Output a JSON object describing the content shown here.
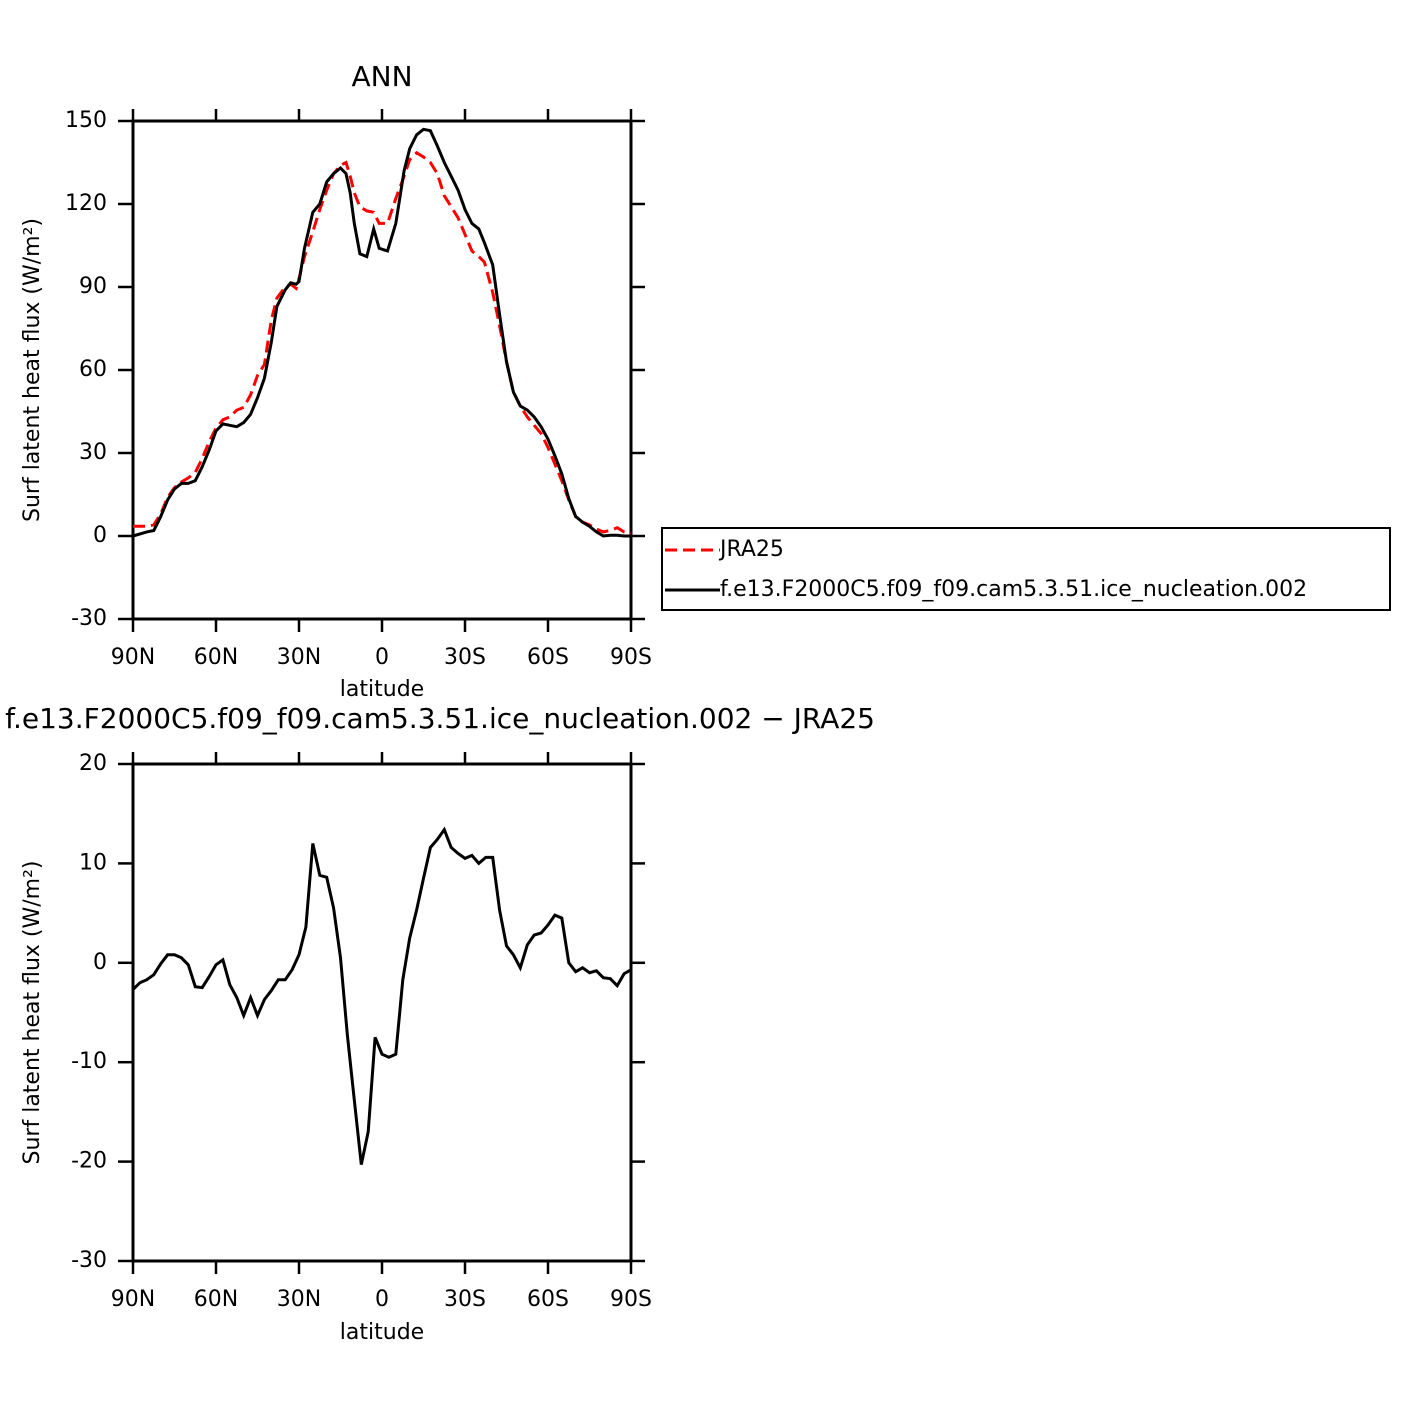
{
  "chart_data": [
    {
      "type": "line",
      "title": "ANN",
      "x_label": "latitude",
      "y_label": "Surf latent heat flux (W/m²)",
      "x": [
        90,
        85,
        82.5,
        80,
        77.5,
        75,
        72.5,
        70,
        67.5,
        65,
        62.5,
        60,
        57.5,
        55,
        52.5,
        50,
        47.5,
        45,
        42.5,
        40,
        38,
        35,
        33,
        31,
        30,
        28,
        25,
        22.5,
        20,
        17.5,
        15,
        13,
        11.5,
        10,
        8,
        5.5,
        3,
        1,
        -2,
        -5,
        -8,
        -10,
        -12.5,
        -15,
        -17.5,
        -20,
        -22.5,
        -25,
        -27.5,
        -30,
        -32.5,
        -35,
        -37,
        -40,
        -42.5,
        -45,
        -47.5,
        -50,
        -52.5,
        -55,
        -57.5,
        -60,
        -62.5,
        -65,
        -67.5,
        -70,
        -72.5,
        -75,
        -77.5,
        -80,
        -82.5,
        -85,
        -87.5,
        -90
      ],
      "xlim": [
        90,
        -90
      ],
      "xticks": [
        {
          "value": 90,
          "label": "90N"
        },
        {
          "value": 60,
          "label": "60N"
        },
        {
          "value": 30,
          "label": "30N"
        },
        0,
        {
          "value": -30,
          "label": "30S"
        },
        {
          "value": -60,
          "label": "60S"
        },
        {
          "value": -90,
          "label": "90S"
        }
      ],
      "ylim": [
        -30,
        150
      ],
      "yticks": [
        150,
        120,
        90,
        60,
        30,
        0,
        -30
      ],
      "legend": "right",
      "series": [
        {
          "name": "JRA25",
          "color": "#ff0000",
          "line_style": "dashed",
          "values": [
            3.5,
            3.5,
            4,
            8,
            14,
            17.5,
            19.5,
            21,
            23,
            28,
            34,
            39,
            42,
            43,
            45.5,
            46.5,
            51,
            58,
            62,
            78,
            86,
            90,
            91,
            89.5,
            93,
            101,
            110,
            118,
            125,
            131,
            134,
            135,
            130,
            124,
            119,
            117.5,
            117,
            113,
            113,
            122,
            130,
            136,
            138.5,
            137,
            135,
            131,
            123,
            119,
            115,
            109,
            103,
            101,
            99,
            88,
            76,
            63,
            52,
            47,
            43,
            40,
            37,
            32,
            26,
            20,
            13,
            7,
            5,
            4,
            2.5,
            1.5,
            2,
            3,
            1.5,
            1
          ]
        },
        {
          "name": "f.e13.F2000C5.f09_f09.cam5.3.51.ice_nucleation.002",
          "color": "#000000",
          "line_style": "solid",
          "values": [
            0,
            1.5,
            2,
            7,
            13,
            17,
            19,
            19,
            20,
            25,
            31,
            38,
            40.5,
            40,
            39.5,
            41,
            44,
            50,
            57,
            70,
            83,
            89,
            91.5,
            91,
            92,
            104,
            117,
            120,
            128,
            131,
            133,
            131,
            124,
            113,
            102,
            101,
            111,
            104,
            103,
            113,
            132,
            140,
            145,
            147,
            146.5,
            141,
            135,
            130,
            125,
            118,
            113,
            111,
            106,
            98,
            80,
            63,
            52,
            47,
            45.5,
            43,
            39.5,
            35,
            29,
            22.5,
            13.5,
            7,
            5,
            3.5,
            1.5,
            0,
            0.3,
            0.3,
            0,
            0
          ]
        }
      ]
    },
    {
      "type": "line",
      "title": "f.e13.F2000C5.f09_f09.cam5.3.51.ice_nucleation.002 − JRA25",
      "x_label": "latitude",
      "y_label": "Surf latent heat flux (W/m²)",
      "x": [
        90,
        87.5,
        85,
        82.5,
        80,
        77.5,
        75,
        72.5,
        70,
        67.5,
        65,
        62.5,
        60,
        57.5,
        55,
        52.5,
        50,
        47.5,
        45,
        42.5,
        40,
        37.5,
        35,
        32.5,
        30,
        27.5,
        25,
        22.5,
        20,
        17.5,
        15,
        12.5,
        10,
        7.5,
        5,
        2.5,
        0,
        -2.5,
        -5,
        -7.5,
        -10,
        -12.5,
        -15,
        -17.5,
        -20,
        -22.5,
        -25,
        -27.5,
        -30,
        -32.5,
        -35,
        -37.5,
        -40,
        -42.5,
        -45,
        -47.5,
        -50,
        -52.5,
        -55,
        -57.5,
        -60,
        -62.5,
        -65,
        -67.5,
        -70,
        -72.5,
        -75,
        -77.5,
        -80,
        -82.5,
        -85,
        -87.5,
        -90
      ],
      "xlim": [
        90,
        -90
      ],
      "xticks": [
        {
          "value": 90,
          "label": "90N"
        },
        {
          "value": 60,
          "label": "60N"
        },
        {
          "value": 30,
          "label": "30N"
        },
        0,
        {
          "value": -30,
          "label": "30S"
        },
        {
          "value": -60,
          "label": "60S"
        },
        {
          "value": -90,
          "label": "90S"
        }
      ],
      "ylim": [
        -30,
        20
      ],
      "yticks": [
        20,
        10,
        0,
        -10,
        -20,
        -30
      ],
      "series": [
        {
          "color": "#000000",
          "line_style": "solid",
          "values": [
            -2.7,
            -2,
            -1.7,
            -1.2,
            -0.1,
            0.8,
            0.8,
            0.5,
            -0.2,
            -2.4,
            -2.5,
            -1.4,
            -0.2,
            0.3,
            -2.2,
            -3.5,
            -5.3,
            -3.5,
            -5.3,
            -3.7,
            -2.8,
            -1.7,
            -1.7,
            -0.7,
            0.8,
            3.6,
            12,
            8.8,
            8.6,
            5.5,
            0.5,
            -7.3,
            -13.8,
            -20.3,
            -17,
            -7.5,
            -9.2,
            -9.5,
            -9.2,
            -1.7,
            2.5,
            5.3,
            8.5,
            11.6,
            12.4,
            13.4,
            11.6,
            11,
            10.5,
            10.8,
            10,
            10.6,
            10.6,
            5.3,
            1.7,
            0.8,
            -0.5,
            1.8,
            2.8,
            3,
            3.8,
            4.8,
            4.5,
            0,
            -0.9,
            -0.5,
            -1,
            -0.8,
            -1.5,
            -1.6,
            -2.3,
            -1.1,
            -0.7
          ]
        }
      ]
    }
  ]
}
